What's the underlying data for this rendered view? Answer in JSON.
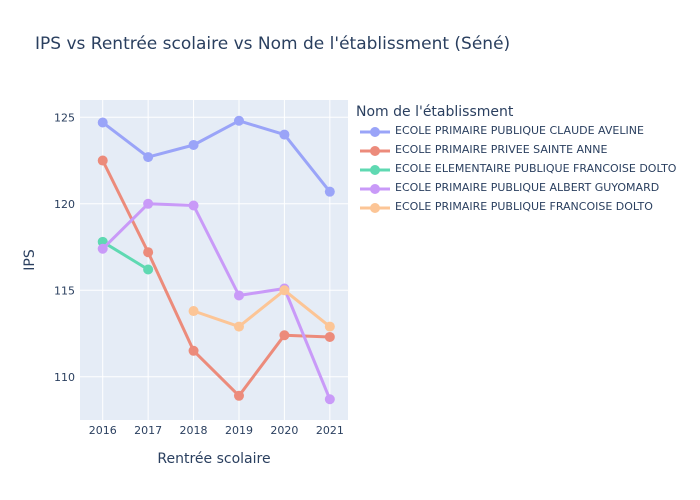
{
  "chart_data": {
    "type": "line",
    "title": "IPS vs Rentrée scolaire vs Nom de l'établissment (Séné)",
    "xlabel": "Rentrée scolaire",
    "ylabel": "IPS",
    "x": [
      2016,
      2017,
      2018,
      2019,
      2020,
      2021
    ],
    "xlim": [
      2015.5,
      2021.4
    ],
    "ylim": [
      107.5,
      126.0
    ],
    "yticks": [
      110,
      115,
      120,
      125
    ],
    "grid": true,
    "legend_title": "Nom de l'établissment",
    "legend_position": "right",
    "series": [
      {
        "name": "ECOLE PRIMAIRE PUBLIQUE CLAUDE AVELINE",
        "color": "#9aa4f8",
        "values": [
          124.7,
          122.7,
          123.4,
          124.8,
          124.0,
          120.7
        ]
      },
      {
        "name": "ECOLE PRIMAIRE PRIVEE SAINTE ANNE",
        "color": "#ec8b7b",
        "values": [
          122.5,
          117.2,
          111.5,
          108.9,
          112.4,
          112.3
        ]
      },
      {
        "name": "ECOLE ELEMENTAIRE PUBLIQUE FRANCOISE DOLTO",
        "color": "#5fd9b2",
        "values": [
          117.8,
          116.2,
          null,
          null,
          null,
          null
        ]
      },
      {
        "name": "ECOLE PRIMAIRE PUBLIQUE ALBERT GUYOMARD",
        "color": "#c99af8",
        "values": [
          117.4,
          120.0,
          119.9,
          114.7,
          115.1,
          108.7
        ]
      },
      {
        "name": "ECOLE PRIMAIRE PUBLIQUE FRANCOISE DOLTO",
        "color": "#fcc596",
        "values": [
          null,
          null,
          113.8,
          112.9,
          115.0,
          112.9
        ]
      }
    ]
  }
}
